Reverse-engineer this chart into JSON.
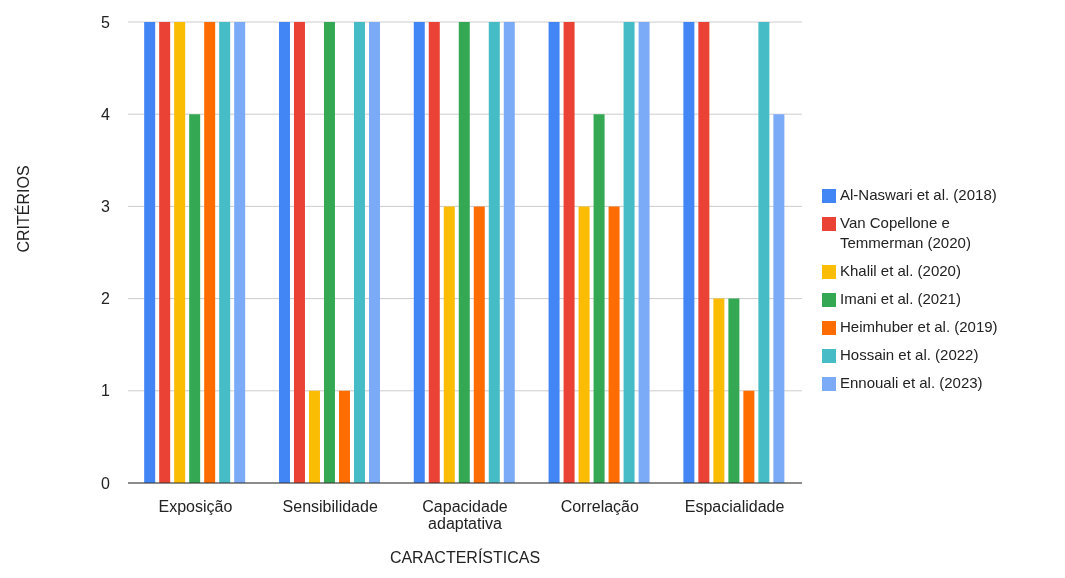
{
  "chart_data": {
    "type": "bar",
    "xlabel": "CARACTERÍSTICAS",
    "ylabel": "CRITÉRIOS",
    "categories": [
      "Exposição",
      "Sensibilidade",
      "Capacidade adaptativa",
      "Correlação",
      "Espacialidade"
    ],
    "series": [
      {
        "name": "Al-Naswari et al. (2018)",
        "color": "#4285f4",
        "values": [
          5,
          5,
          5,
          5,
          5
        ]
      },
      {
        "name": "Van Copellone e Temmerman (2020)",
        "color": "#ea4335",
        "values": [
          5,
          5,
          5,
          5,
          5
        ]
      },
      {
        "name": "Khalil et al. (2020)",
        "color": "#fbbc04",
        "values": [
          5,
          1,
          3,
          3,
          2
        ]
      },
      {
        "name": "Imani et al. (2021)",
        "color": "#34a853",
        "values": [
          4,
          5,
          5,
          4,
          2
        ]
      },
      {
        "name": "Heimhuber et al. (2019)",
        "color": "#ff6d01",
        "values": [
          5,
          1,
          3,
          3,
          1
        ]
      },
      {
        "name": "Hossain et al. (2022)",
        "color": "#46bdc6",
        "values": [
          5,
          5,
          5,
          5,
          5
        ]
      },
      {
        "name": "Ennouali et al. (2023)",
        "color": "#7baaf7",
        "values": [
          5,
          5,
          5,
          5,
          4
        ]
      }
    ],
    "ylim": [
      0,
      5
    ],
    "yticks": [
      0,
      1,
      2,
      3,
      4,
      5
    ],
    "grid": "y",
    "legend": "right"
  }
}
